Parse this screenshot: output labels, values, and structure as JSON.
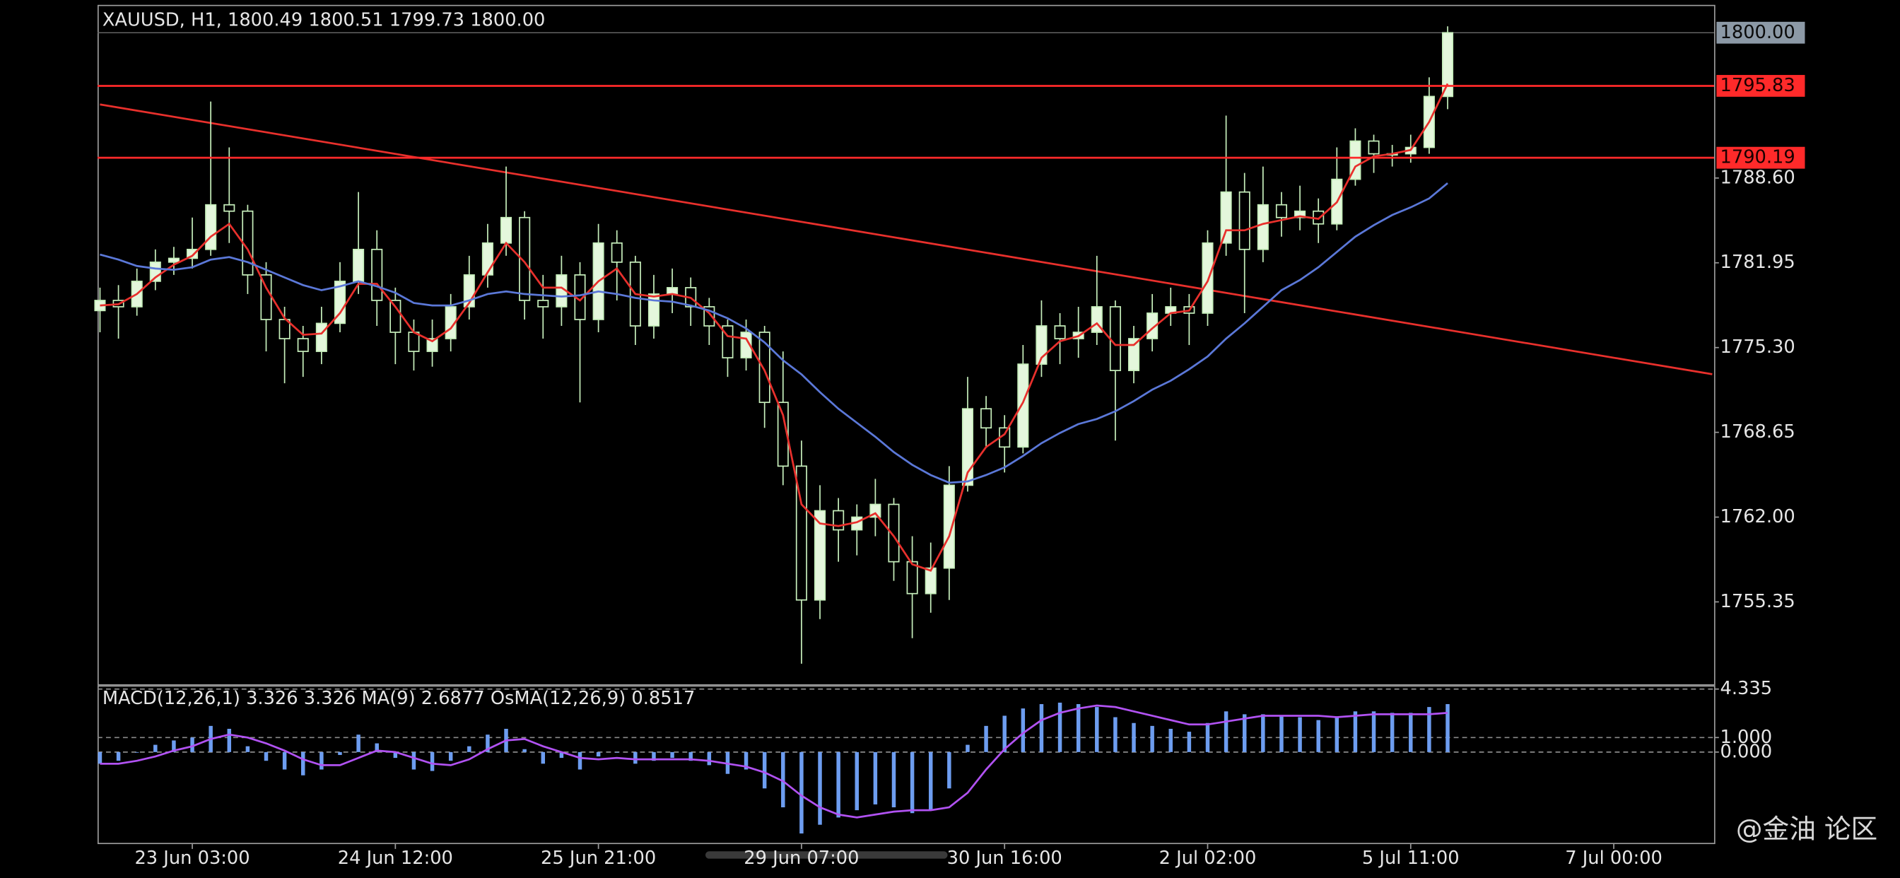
{
  "chart_data": [
    {
      "type": "candlestick",
      "title": "XAUUSD, H1, 1800.49 1800.51 1799.73 1800.00",
      "x": [
        0,
        3,
        6,
        9,
        12,
        15,
        18,
        21,
        24,
        27,
        30,
        33,
        36,
        39,
        42,
        45,
        48,
        51,
        54,
        57,
        60,
        63,
        66,
        69,
        72,
        75,
        78,
        81,
        84,
        87,
        90,
        93,
        96,
        99,
        102,
        105,
        108,
        111,
        114,
        117,
        120,
        123,
        126,
        129,
        132,
        135,
        138,
        141,
        144,
        147,
        150,
        153,
        156,
        159,
        162,
        165,
        168,
        171,
        174,
        177,
        180,
        183,
        186,
        189,
        192,
        195,
        198,
        201,
        204,
        207,
        210,
        213,
        216,
        219
      ],
      "open": [
        1778.2,
        1779.0,
        1778.5,
        1780.5,
        1782.0,
        1782.3,
        1783.0,
        1786.5,
        1786.0,
        1781.0,
        1777.5,
        1776.0,
        1775.0,
        1777.2,
        1780.5,
        1783.0,
        1779.0,
        1776.5,
        1775.0,
        1776.0,
        1778.5,
        1781.0,
        1783.5,
        1785.5,
        1779.0,
        1778.5,
        1781.0,
        1777.5,
        1783.5,
        1782.0,
        1777.0,
        1779.5,
        1780.0,
        1778.5,
        1777.0,
        1774.5,
        1776.5,
        1771.0,
        1766.0,
        1755.5,
        1762.5,
        1761.0,
        1762.0,
        1763.0,
        1758.5,
        1756.0,
        1758.0,
        1764.5,
        1770.5,
        1769.0,
        1767.5,
        1774.0,
        1777.0,
        1776.0,
        1776.5,
        1778.5,
        1773.5,
        1776.0,
        1778.0,
        1778.5,
        1778.0,
        1783.5,
        1787.5,
        1783.0,
        1786.5,
        1785.5,
        1786.0,
        1785.0,
        1788.5,
        1791.5,
        1790.5,
        1790.5,
        1791.0,
        1795.0
      ],
      "high": [
        1780.0,
        1780.2,
        1781.5,
        1783.0,
        1783.2,
        1785.5,
        1794.6,
        1791.0,
        1786.5,
        1782.0,
        1778.5,
        1777.0,
        1778.5,
        1782.0,
        1787.5,
        1784.5,
        1780.0,
        1777.5,
        1777.5,
        1779.5,
        1782.5,
        1785.0,
        1789.5,
        1786.0,
        1781.0,
        1782.5,
        1782.0,
        1785.0,
        1784.5,
        1782.5,
        1781.0,
        1781.5,
        1780.8,
        1779.2,
        1777.5,
        1777.5,
        1777.0,
        1775.0,
        1768.0,
        1764.5,
        1763.5,
        1763.0,
        1765.0,
        1763.5,
        1760.5,
        1760.0,
        1766.0,
        1773.0,
        1771.5,
        1770.0,
        1775.5,
        1779.0,
        1778.0,
        1778.5,
        1782.5,
        1779.0,
        1777.0,
        1779.5,
        1780.0,
        1779.5,
        1784.5,
        1793.5,
        1789.0,
        1789.5,
        1787.5,
        1788.0,
        1787.0,
        1791.0,
        1792.5,
        1792.0,
        1791.2,
        1792.0,
        1796.5,
        1800.5
      ],
      "low": [
        1776.5,
        1776.0,
        1777.8,
        1779.8,
        1781.0,
        1781.5,
        1782.5,
        1783.5,
        1779.5,
        1775.0,
        1772.5,
        1773.0,
        1774.0,
        1776.5,
        1779.5,
        1777.0,
        1774.0,
        1773.5,
        1773.8,
        1775.0,
        1777.5,
        1780.0,
        1782.5,
        1777.5,
        1776.0,
        1777.0,
        1771.0,
        1776.5,
        1779.0,
        1775.5,
        1776.0,
        1778.0,
        1777.0,
        1775.5,
        1773.0,
        1773.5,
        1769.0,
        1764.5,
        1750.5,
        1754.0,
        1758.5,
        1759.0,
        1760.5,
        1757.0,
        1752.5,
        1754.5,
        1755.5,
        1764.0,
        1767.5,
        1765.5,
        1767.0,
        1773.0,
        1774.0,
        1774.5,
        1775.5,
        1768.0,
        1772.5,
        1775.0,
        1777.0,
        1775.5,
        1777.0,
        1782.5,
        1778.0,
        1782.0,
        1784.0,
        1784.5,
        1783.5,
        1784.5,
        1788.0,
        1789.0,
        1789.5,
        1789.8,
        1790.5,
        1794.0
      ],
      "close": [
        1779.0,
        1778.5,
        1780.5,
        1782.0,
        1782.3,
        1783.0,
        1786.5,
        1786.0,
        1781.0,
        1777.5,
        1776.0,
        1775.0,
        1777.2,
        1780.5,
        1783.0,
        1779.0,
        1776.5,
        1775.0,
        1776.0,
        1778.5,
        1781.0,
        1783.5,
        1785.5,
        1779.0,
        1778.5,
        1781.0,
        1777.5,
        1783.5,
        1782.0,
        1777.0,
        1779.5,
        1780.0,
        1778.5,
        1777.0,
        1774.5,
        1776.5,
        1771.0,
        1766.0,
        1755.5,
        1762.5,
        1761.0,
        1762.0,
        1763.0,
        1758.5,
        1756.0,
        1758.0,
        1764.5,
        1770.5,
        1769.0,
        1767.5,
        1774.0,
        1777.0,
        1776.0,
        1776.5,
        1778.5,
        1773.5,
        1776.0,
        1778.0,
        1778.5,
        1778.0,
        1783.5,
        1787.5,
        1783.0,
        1786.5,
        1785.5,
        1786.0,
        1785.0,
        1788.5,
        1791.5,
        1790.5,
        1790.5,
        1791.0,
        1795.0,
        1800.0
      ],
      "up_color": "#e4f7dc",
      "down_color": "#000000",
      "wick_color": "#c6eebb",
      "series": [
        {
          "color": "#e8302c",
          "values": [
            1778.6,
            1778.7,
            1779.5,
            1780.8,
            1781.8,
            1782.5,
            1784.0,
            1785.0,
            1783.0,
            1780.0,
            1777.6,
            1776.3,
            1776.4,
            1778.0,
            1780.3,
            1780.3,
            1778.5,
            1776.5,
            1775.8,
            1776.8,
            1778.8,
            1781.2,
            1783.5,
            1782.0,
            1780.0,
            1780.0,
            1779.0,
            1780.5,
            1781.5,
            1779.5,
            1779.3,
            1779.5,
            1779.2,
            1778.0,
            1776.2,
            1776.0,
            1773.5,
            1770.0,
            1763.0,
            1761.5,
            1761.3,
            1761.6,
            1762.3,
            1760.5,
            1758.3,
            1757.8,
            1760.5,
            1765.5,
            1767.5,
            1768.5,
            1771.0,
            1774.5,
            1775.8,
            1776.2,
            1777.2,
            1775.5,
            1775.5,
            1776.8,
            1778.0,
            1778.2,
            1780.5,
            1784.5,
            1784.5,
            1785.0,
            1785.3,
            1785.6,
            1785.4,
            1786.7,
            1789.5,
            1790.3,
            1790.5,
            1790.8,
            1793.0,
            1796.0
          ]
        },
        {
          "color": "#5b78d8",
          "values": [
            1782.6,
            1782.2,
            1781.7,
            1781.5,
            1781.4,
            1781.6,
            1782.2,
            1782.4,
            1782.0,
            1781.4,
            1780.8,
            1780.2,
            1779.8,
            1780.1,
            1780.5,
            1780.1,
            1779.6,
            1778.8,
            1778.6,
            1778.6,
            1779.0,
            1779.5,
            1779.7,
            1779.5,
            1779.4,
            1779.3,
            1779.4,
            1779.7,
            1779.5,
            1779.2,
            1779.0,
            1778.9,
            1778.6,
            1778.2,
            1777.6,
            1776.8,
            1775.7,
            1774.3,
            1773.2,
            1771.8,
            1770.5,
            1769.4,
            1768.3,
            1767.1,
            1766.1,
            1765.3,
            1764.7,
            1764.8,
            1765.3,
            1765.9,
            1766.8,
            1767.8,
            1768.6,
            1769.3,
            1769.7,
            1770.3,
            1771.1,
            1772.0,
            1772.7,
            1773.6,
            1774.6,
            1776.0,
            1777.2,
            1778.5,
            1779.8,
            1780.6,
            1781.6,
            1782.8,
            1784.0,
            1784.9,
            1785.7,
            1786.3,
            1787.0,
            1788.2
          ]
        }
      ],
      "hlines": [
        1795.83,
        1790.19
      ],
      "hline_color": "#ff2a2a",
      "current_price": {
        "value": 1800,
        "label": "1800.00"
      },
      "trendline": {
        "x": [
          0,
          262
        ],
        "y": [
          1794.37,
          1773.21
        ],
        "color": "#e8302c"
      },
      "xlim": [
        -0.4,
        262.3
      ],
      "ylim": [
        1748.89,
        1802.09
      ],
      "yticks": [
        {
          "value": 1788.6,
          "label": "1788.60"
        },
        1781.95,
        {
          "value": 1775.3,
          "label": "1775.30"
        },
        1768.65,
        {
          "value": 1762,
          "label": "1762.00"
        },
        1755.35
      ],
      "xticks": [
        {
          "value": 15,
          "label": "23 Jun 03:00"
        },
        {
          "value": 48,
          "label": "24 Jun 12:00"
        },
        {
          "value": 81,
          "label": "25 Jun 21:00"
        },
        {
          "value": 114,
          "label": "29 Jun 07:00"
        },
        {
          "value": 147,
          "label": "30 Jun 16:00"
        },
        {
          "value": 180,
          "label": "2 Jul 02:00"
        },
        {
          "value": 213,
          "label": "5 Jul 11:00"
        },
        {
          "value": 246,
          "label": "7 Jul 00:00"
        }
      ]
    },
    {
      "type": "bar",
      "title": "MACD(12,26,1) 3.326 3.326 MA(9) 2.6877 OsMA(12,26,9) 0.8517",
      "x": [
        0,
        3,
        6,
        9,
        12,
        15,
        18,
        21,
        24,
        27,
        30,
        33,
        36,
        39,
        42,
        45,
        48,
        51,
        54,
        57,
        60,
        63,
        66,
        69,
        72,
        75,
        78,
        81,
        84,
        87,
        90,
        93,
        96,
        99,
        102,
        105,
        108,
        111,
        114,
        117,
        120,
        123,
        126,
        129,
        132,
        135,
        138,
        141,
        144,
        147,
        150,
        153,
        156,
        159,
        162,
        165,
        168,
        171,
        174,
        177,
        180,
        183,
        186,
        189,
        192,
        195,
        198,
        201,
        204,
        207,
        210,
        213,
        216,
        219
      ],
      "series": [
        {
          "type": "bar",
          "color": "#6d9df0",
          "values": [
            -0.8,
            -0.6,
            0.0,
            0.5,
            0.8,
            1.0,
            1.8,
            1.6,
            0.4,
            -0.6,
            -1.2,
            -1.6,
            -1.2,
            -0.2,
            1.2,
            0.6,
            -0.4,
            -1.2,
            -1.3,
            -0.6,
            0.4,
            1.2,
            1.6,
            0.2,
            -0.8,
            -0.4,
            -1.2,
            -0.3,
            0.0,
            -0.8,
            -0.6,
            -0.4,
            -0.6,
            -0.9,
            -1.5,
            -1.2,
            -2.5,
            -3.8,
            -5.6,
            -5.0,
            -4.5,
            -4.0,
            -3.6,
            -3.8,
            -4.2,
            -4.0,
            -2.5,
            0.5,
            1.8,
            2.5,
            3.0,
            3.3,
            3.4,
            3.3,
            3.1,
            2.4,
            2.0,
            1.8,
            1.6,
            1.4,
            2.0,
            2.8,
            2.6,
            2.6,
            2.5,
            2.4,
            2.2,
            2.4,
            2.8,
            2.8,
            2.7,
            2.7,
            3.1,
            3.3
          ]
        },
        {
          "type": "line",
          "color": "#b152f2",
          "values": [
            -0.8,
            -0.8,
            -0.6,
            -0.3,
            0.1,
            0.4,
            0.9,
            1.2,
            1.0,
            0.6,
            0.1,
            -0.5,
            -0.9,
            -0.9,
            -0.4,
            0.1,
            0.0,
            -0.4,
            -0.8,
            -0.9,
            -0.5,
            0.2,
            0.8,
            0.9,
            0.4,
            0.0,
            -0.4,
            -0.5,
            -0.4,
            -0.5,
            -0.5,
            -0.5,
            -0.5,
            -0.6,
            -0.8,
            -1.0,
            -1.4,
            -2.0,
            -3.0,
            -3.8,
            -4.3,
            -4.5,
            -4.3,
            -4.1,
            -4.0,
            -4.0,
            -3.8,
            -2.8,
            -1.2,
            0.2,
            1.3,
            2.2,
            2.7,
            3.0,
            3.2,
            3.1,
            2.8,
            2.5,
            2.2,
            1.9,
            1.9,
            2.1,
            2.3,
            2.5,
            2.5,
            2.5,
            2.5,
            2.4,
            2.5,
            2.6,
            2.6,
            2.6,
            2.6,
            2.7
          ]
        }
      ],
      "xlim": [
        -0.4,
        262.3
      ],
      "ylim": [
        -6.33,
        4.5
      ],
      "yticks": [
        4.335,
        {
          "value": 1,
          "label": "1.000"
        },
        {
          "value": 0,
          "label": "0.000"
        }
      ]
    }
  ],
  "watermark": "@金油 论区"
}
